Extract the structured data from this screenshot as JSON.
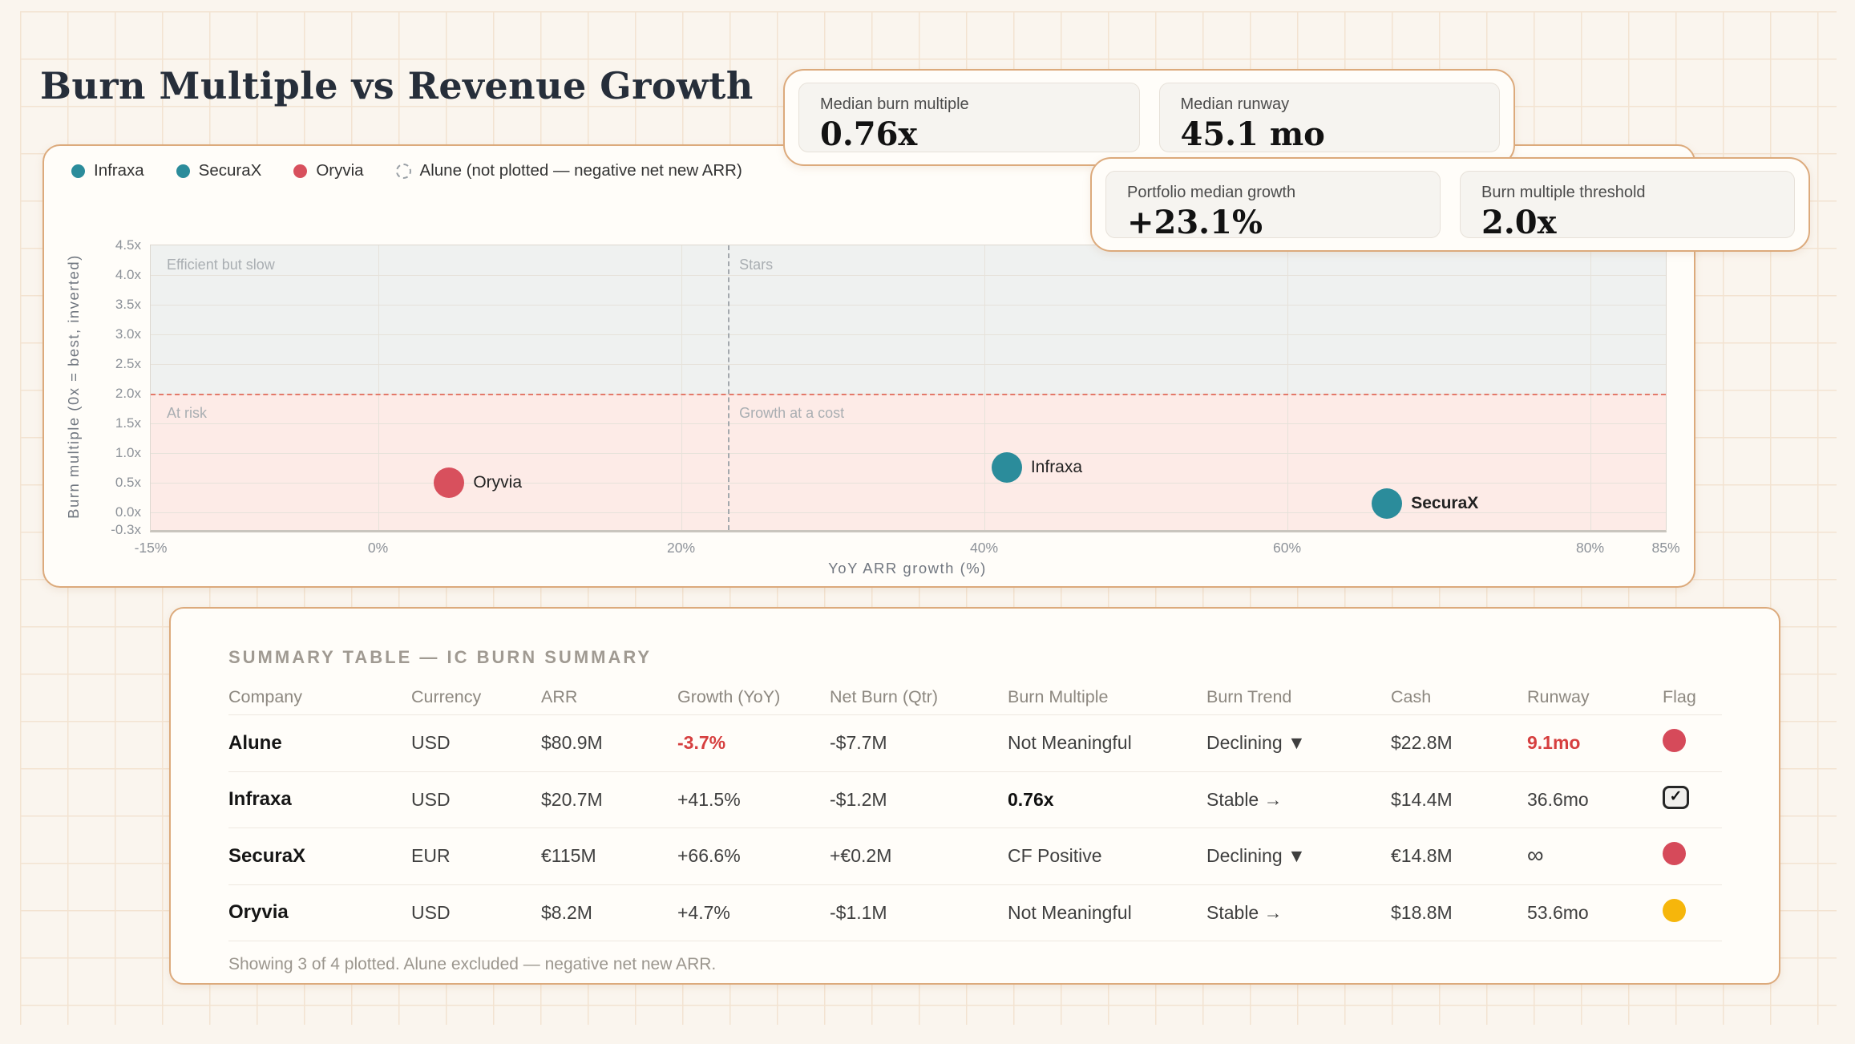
{
  "page": {
    "title": "Burn Multiple vs Revenue Growth"
  },
  "stat_cards": [
    {
      "label": "Median burn multiple",
      "value": "0.76x"
    },
    {
      "label": "Median runway",
      "value": "45.1 mo"
    },
    {
      "label": "Portfolio median growth",
      "value": "+23.1%"
    },
    {
      "label": "Burn multiple threshold",
      "value": "2.0x"
    }
  ],
  "legend": [
    {
      "label": "Infraxa",
      "color": "#2b8c9b",
      "style": "filled"
    },
    {
      "label": "SecuraX",
      "color": "#2b8c9b",
      "style": "filled"
    },
    {
      "label": "Oryvia",
      "color": "#d8505d",
      "style": "filled"
    },
    {
      "label": "Alune (not plotted — negative net new ARR)",
      "color": "#9aa0a6",
      "style": "dashed-outline"
    }
  ],
  "chart_data": {
    "type": "scatter",
    "title": "Burn Multiple vs Revenue Growth",
    "xlabel": "YoY ARR growth (%)",
    "ylabel": "Burn multiple (0x = best, inverted)",
    "xlim": [
      -15,
      85
    ],
    "ylim": [
      -0.3,
      4.5
    ],
    "x_ticks": [
      "-15%",
      "0%",
      "20%",
      "40%",
      "60%",
      "80%",
      "85%"
    ],
    "x_tick_values": [
      -15,
      0,
      20,
      40,
      60,
      80,
      85
    ],
    "y_ticks": [
      "4.5x",
      "4.0x",
      "3.5x",
      "3.0x",
      "2.5x",
      "2.0x",
      "1.5x",
      "1.0x",
      "0.5x",
      "0.0x",
      "-0.3x"
    ],
    "y_tick_values": [
      4.5,
      4.0,
      3.5,
      3.0,
      2.5,
      2.0,
      1.5,
      1.0,
      0.5,
      0.0,
      -0.3
    ],
    "threshold_value": 2.0,
    "median_growth_value": 23.1,
    "quadrants": {
      "top_left": "Efficient but slow",
      "top_right": "Stars",
      "bottom_left": "At risk",
      "bottom_right": "Growth at a cost"
    },
    "zone_colors": {
      "above_threshold": "#eff1f0",
      "below_threshold": "#fdebe7"
    },
    "points": [
      {
        "name": "Oryvia",
        "x": 4.7,
        "y": 0.5,
        "color": "#d8505d"
      },
      {
        "name": "Infraxa",
        "x": 41.5,
        "y": 0.76,
        "color": "#2b8c9b"
      },
      {
        "name": "SecuraX",
        "x": 66.6,
        "y": 0.15,
        "color": "#2b8c9b",
        "label_weight": "700"
      }
    ],
    "legend_position": "top-left",
    "grid": true
  },
  "table": {
    "title": "SUMMARY TABLE — IC BURN SUMMARY",
    "columns": [
      "Company",
      "Currency",
      "ARR",
      "Growth (YoY)",
      "Net Burn (Qtr)",
      "Burn Multiple",
      "Burn Trend",
      "Cash",
      "Runway",
      "Flag"
    ],
    "rows": [
      {
        "company": "Alune",
        "currency": "USD",
        "arr": "$80.9M",
        "growth": "-3.7%",
        "growth_alert": true,
        "net_burn": "-$7.7M",
        "burn_multiple": "Not Meaningful",
        "trend": "Declining ▼",
        "cash": "$22.8M",
        "runway": "9.1mo",
        "runway_alert": true,
        "flag": "red"
      },
      {
        "company": "Infraxa",
        "currency": "USD",
        "arr": "$20.7M",
        "growth": "+41.5%",
        "net_burn": "-$1.2M",
        "burn_multiple": "0.76x",
        "burn_multiple_strong": true,
        "trend": "Stable →",
        "cash": "$14.4M",
        "runway": "36.6mo",
        "flag": "check"
      },
      {
        "company": "SecuraX",
        "currency": "EUR",
        "arr": "€115M",
        "growth": "+66.6%",
        "net_burn": "+€0.2M",
        "burn_multiple": "CF Positive",
        "trend": "Declining ▼",
        "cash": "€14.8M",
        "runway": "∞",
        "flag": "red"
      },
      {
        "company": "Oryvia",
        "currency": "USD",
        "arr": "$8.2M",
        "growth": "+4.7%",
        "net_burn": "-$1.1M",
        "burn_multiple": "Not Meaningful",
        "trend": "Stable →",
        "cash": "$18.8M",
        "runway": "53.6mo",
        "flag": "yellow"
      }
    ],
    "footer": "Showing 3 of 4 plotted. Alune excluded — negative net new ARR."
  }
}
